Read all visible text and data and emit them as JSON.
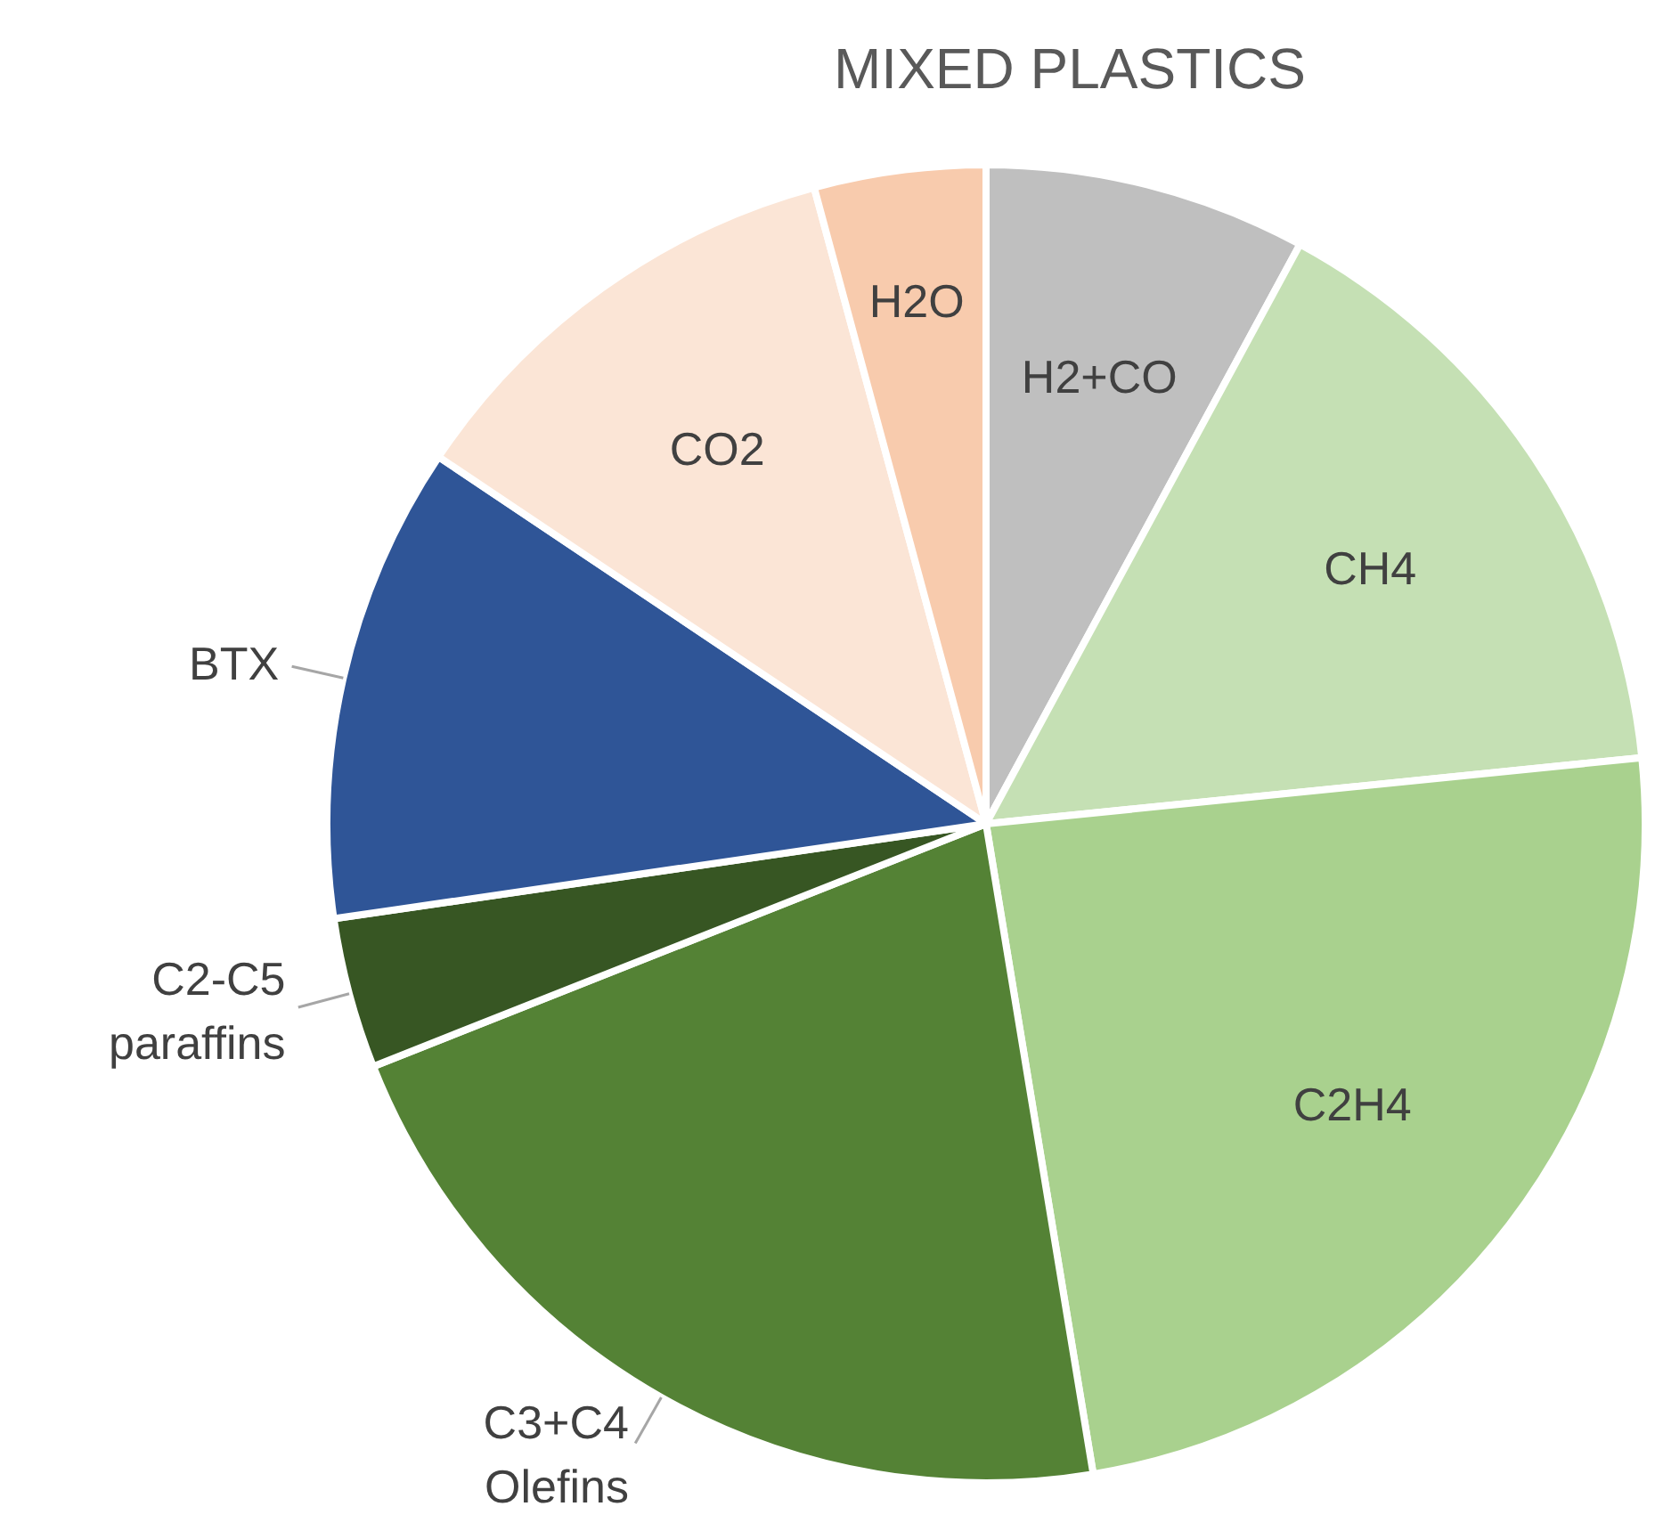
{
  "chart_data": {
    "type": "pie",
    "title": "MIXED PLASTICS",
    "categories": [
      "H2+CO",
      "CH4",
      "C2H4",
      "C3+C4 Olefins",
      "C2-C5 paraffins",
      "BTX",
      "CO2",
      "H2O"
    ],
    "values": [
      7.9,
      15.5,
      24.0,
      21.6,
      3.7,
      11.7,
      11.4,
      4.2
    ],
    "colors": [
      "#bfbfbf",
      "#c5e0b4",
      "#a9d18e",
      "#548235",
      "#375623",
      "#2f5597",
      "#fbe5d6",
      "#f8cbad"
    ]
  }
}
